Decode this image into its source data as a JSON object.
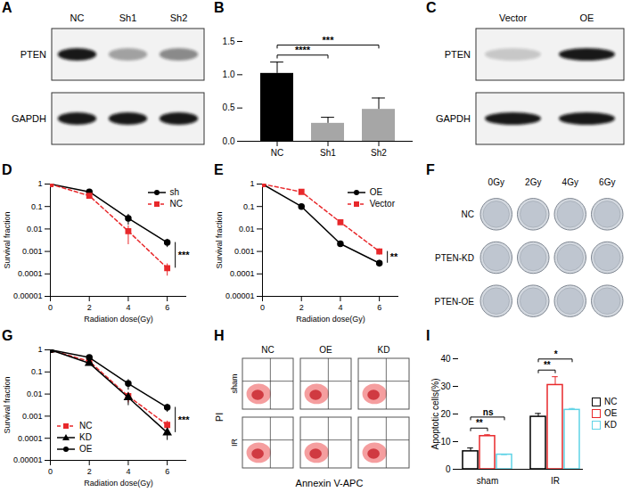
{
  "chart_data": [
    {
      "panel": "B",
      "type": "bar",
      "categories": [
        "NC",
        "Sh1",
        "Sh2"
      ],
      "values": [
        1.02,
        0.27,
        0.48
      ],
      "errors": [
        0.17,
        0.09,
        0.17
      ],
      "colors": [
        "#000000",
        "#a6a6a6",
        "#a6a6a6"
      ],
      "ylim": [
        0,
        1.5
      ],
      "yticks": [
        {
          "value": 0,
          "label": "0.0"
        },
        {
          "value": 0.5,
          "label": "0.5"
        },
        {
          "value": 1,
          "label": "1.0"
        },
        {
          "value": 1.5,
          "label": "1.5"
        }
      ],
      "annotations": [
        {
          "text": "****",
          "between": [
            "NC",
            "Sh1"
          ]
        },
        {
          "text": "***",
          "between": [
            "NC",
            "Sh2"
          ]
        }
      ]
    },
    {
      "panel": "D",
      "type": "line",
      "log": "y",
      "x_label": "Radiation dose(Gy)",
      "y_label": "Survival fraction",
      "x": [
        0,
        2,
        4,
        6
      ],
      "xlim": [
        0,
        7
      ],
      "xticks": [
        0,
        2,
        4,
        6
      ],
      "ylim": [
        1e-05,
        1
      ],
      "yticks": [
        1e-05,
        0.0001,
        0.001,
        0.01,
        0.1,
        1
      ],
      "legend": "top-right",
      "series": [
        {
          "name": "sh",
          "color": "#000000",
          "marker": "circle",
          "line_style": "solid",
          "values": [
            1,
            0.45,
            0.03,
            0.0025
          ],
          "errors": [
            0,
            0,
            0.015,
            0.001
          ]
        },
        {
          "name": "NC",
          "color": "#e8282b",
          "marker": "square",
          "line_style": "dashed",
          "values": [
            1,
            0.3,
            0.008,
            0.00018
          ],
          "errors": [
            0,
            0,
            0.006,
            0.0001
          ]
        }
      ],
      "annotations": [
        {
          "text": "***",
          "between": [
            "sh",
            "NC"
          ]
        }
      ]
    },
    {
      "panel": "E",
      "type": "line",
      "log": "y",
      "x_label": "Radiation dose(Gy)",
      "y_label": "Survival fraction",
      "x": [
        0,
        2,
        4,
        6
      ],
      "xlim": [
        0,
        7
      ],
      "xticks": [
        0,
        2,
        4,
        6
      ],
      "ylim": [
        1e-05,
        1
      ],
      "yticks": [
        1e-05,
        0.0001,
        0.001,
        0.01,
        0.1,
        1
      ],
      "legend": "top-right",
      "series": [
        {
          "name": "OE",
          "color": "#000000",
          "marker": "circle",
          "line_style": "solid",
          "values": [
            1,
            0.1,
            0.0022,
            0.0003
          ],
          "errors": [
            0,
            0,
            0,
            0.0001
          ]
        },
        {
          "name": "Vector",
          "color": "#e8282b",
          "marker": "square",
          "line_style": "dashed",
          "values": [
            1,
            0.45,
            0.02,
            0.001
          ],
          "errors": [
            0,
            0,
            0.005,
            0.0003
          ]
        }
      ],
      "annotations": [
        {
          "text": "**",
          "between": [
            "OE",
            "Vector"
          ]
        }
      ]
    },
    {
      "panel": "G",
      "type": "line",
      "log": "y",
      "x_label": "Radiation dose(Gy)",
      "y_label": "Survival fraction",
      "x": [
        0,
        2,
        4,
        6
      ],
      "xlim": [
        0,
        7
      ],
      "xticks": [
        0,
        2,
        4,
        6
      ],
      "ylim": [
        1e-05,
        1
      ],
      "yticks": [
        1e-05,
        0.0001,
        0.001,
        0.01,
        0.1,
        1
      ],
      "legend": "bottom-left",
      "series": [
        {
          "name": "NC",
          "color": "#e8282b",
          "marker": "square",
          "line_style": "dashed",
          "values": [
            1,
            0.3,
            0.008,
            0.0004
          ],
          "errors": [
            0,
            0,
            0.004,
            0.0002
          ]
        },
        {
          "name": "KD",
          "color": "#000000",
          "marker": "triangle",
          "line_style": "solid",
          "values": [
            1,
            0.25,
            0.007,
            0.00018
          ],
          "errors": [
            0,
            0,
            0.004,
            0.0001
          ]
        },
        {
          "name": "OE",
          "color": "#000000",
          "marker": "circle",
          "line_style": "solid",
          "values": [
            1,
            0.45,
            0.03,
            0.0025
          ],
          "errors": [
            0,
            0,
            0.015,
            0.001
          ]
        }
      ],
      "annotations": [
        {
          "text": "***",
          "between": [
            "OE",
            "KD"
          ]
        }
      ]
    },
    {
      "panel": "I",
      "type": "bar",
      "y_label": "Apoptotic cells(%)",
      "categories": [
        "sham",
        "IR"
      ],
      "ylim": [
        0,
        40
      ],
      "yticks": [
        0,
        10,
        20,
        30,
        40
      ],
      "legend": "right",
      "series": [
        {
          "name": "NC",
          "color": "#000000",
          "values": [
            6.5,
            19
          ],
          "errors": [
            1.2,
            1.2
          ]
        },
        {
          "name": "OE",
          "color": "#e8282b",
          "values": [
            12,
            30.5
          ],
          "errors": [
            0.5,
            3
          ]
        },
        {
          "name": "KD",
          "color": "#5fd3e6",
          "values": [
            5.3,
            21.5
          ],
          "errors": [
            0,
            0.5
          ]
        }
      ],
      "annotations": [
        {
          "text": "**",
          "group": "sham",
          "between": [
            "NC",
            "OE"
          ]
        },
        {
          "text": "ns",
          "group": "sham",
          "between": [
            "NC",
            "KD"
          ]
        },
        {
          "text": "**",
          "group": "IR",
          "between": [
            "NC",
            "OE"
          ]
        },
        {
          "text": "*",
          "group": "IR",
          "between": [
            "NC",
            "KD"
          ]
        }
      ]
    }
  ],
  "blots": [
    {
      "panel": "A",
      "lanes": [
        "NC",
        "Sh1",
        "Sh2"
      ],
      "rows": [
        "PTEN",
        "GAPDH"
      ]
    },
    {
      "panel": "C",
      "lanes": [
        "Vector",
        "OE"
      ],
      "rows": [
        "PTEN",
        "GAPDH"
      ]
    }
  ],
  "colony_plates": {
    "panel": "F",
    "columns": [
      "0Gy",
      "2Gy",
      "4Gy",
      "6Gy"
    ],
    "rows": [
      "NC",
      "PTEN-KD",
      "PTEN-OE"
    ]
  },
  "flow_cytometry": {
    "panel": "H",
    "columns": [
      "NC",
      "OE",
      "KD"
    ],
    "rows": [
      "sham",
      "IR"
    ],
    "x_label": "Annexin V-APC",
    "y_label": "PI"
  }
}
